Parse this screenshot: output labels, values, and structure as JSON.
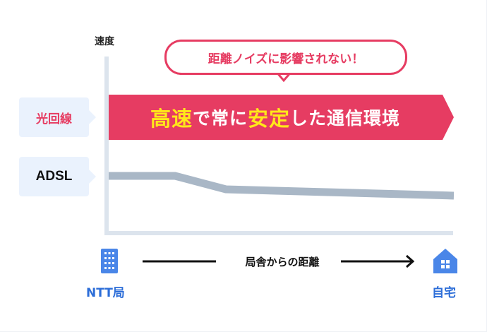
{
  "y_axis_label": "速度",
  "x_axis_label": "局舎からの距離",
  "bubble_text": "距離ノイズに影響されない！",
  "banner": {
    "parts": [
      {
        "text": "高速",
        "highlight": true
      },
      {
        "text": "で常に",
        "highlight": false
      },
      {
        "text": "安定",
        "highlight": true
      },
      {
        "text": "した通信環境",
        "highlight": false
      }
    ]
  },
  "labels": {
    "fiber": "光回線",
    "adsl": "ADSL"
  },
  "endpoints": {
    "start": "NTT局",
    "end": "自宅"
  },
  "icons": {
    "start": "building-icon",
    "end": "house-icon"
  },
  "colors": {
    "accent": "#e63c62",
    "highlight": "#ffe81a",
    "adsl_line": "#a9b7c6",
    "axis": "#dce4ed",
    "endpoint": "#2d6ed8",
    "icon": "#4a86e8"
  }
}
